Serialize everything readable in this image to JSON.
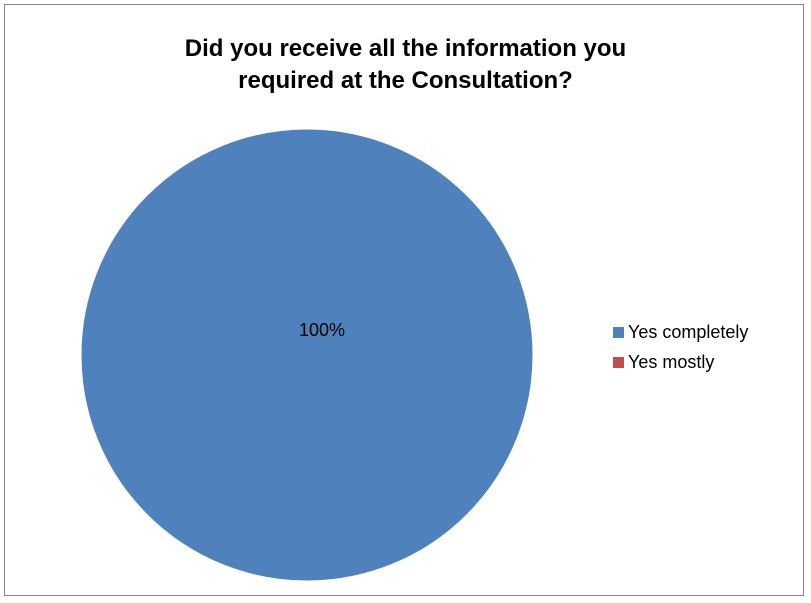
{
  "chart_data": {
    "type": "pie",
    "title": "Did you receive all the information you required at the Consultation?",
    "title_lines": [
      "Did you receive all the information you",
      "required at the Consultation?"
    ],
    "categories": [
      "Yes completely",
      "Yes mostly"
    ],
    "values": [
      100,
      0
    ],
    "data_labels": [
      "100%"
    ],
    "colors": [
      "#4F81BD",
      "#C0504D"
    ],
    "legend": "right",
    "grid": false
  }
}
